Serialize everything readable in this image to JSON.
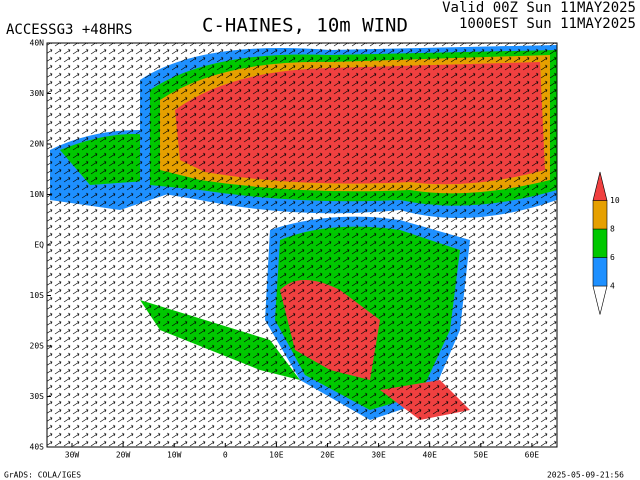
{
  "header": {
    "model": "ACCESSG3 +48HRS",
    "title": "C-HAINES, 10m WIND",
    "valid": "Valid 00Z Sun 11MAY2025",
    "local": "1000EST Sun 11MAY2025"
  },
  "axes": {
    "lat_labels": [
      "40N",
      "30N",
      "20N",
      "10N",
      "EQ",
      "10S",
      "20S",
      "30S",
      "40S"
    ],
    "lon_labels": [
      "30W",
      "20W",
      "10W",
      "0",
      "10E",
      "20E",
      "30E",
      "40E",
      "50E",
      "60E"
    ]
  },
  "colorbar": {
    "labels": [
      4,
      6,
      8,
      10
    ],
    "colors": [
      "#ffffff",
      "#1e90ff",
      "#00c800",
      "#e6a000",
      "#f04040"
    ]
  },
  "footer": {
    "credit": "GrADS: COLA/IGES",
    "timestamp": "2025-05-09-21:56"
  }
}
